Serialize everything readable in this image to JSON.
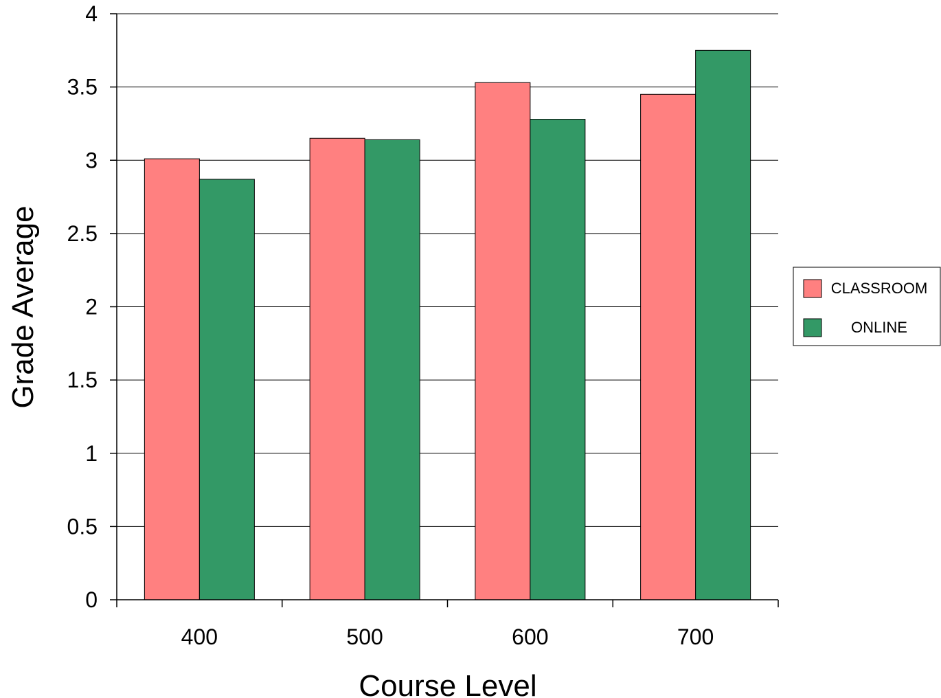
{
  "chart_data": {
    "type": "bar",
    "title": "",
    "xlabel": "Course Level",
    "ylabel": "Grade Average",
    "categories": [
      "400",
      "500",
      "600",
      "700"
    ],
    "series": [
      {
        "name": "CLASSROOM",
        "color": "#ff8080",
        "values": [
          3.01,
          3.15,
          3.53,
          3.45
        ]
      },
      {
        "name": "ONLINE",
        "color": "#339966",
        "values": [
          2.87,
          3.14,
          3.28,
          3.75
        ]
      }
    ],
    "ylim": [
      0,
      4
    ],
    "yticks": [
      "0",
      "0.5",
      "1",
      "1.5",
      "2",
      "2.5",
      "3",
      "3.5",
      "4"
    ],
    "grid": true,
    "legend": "right"
  }
}
